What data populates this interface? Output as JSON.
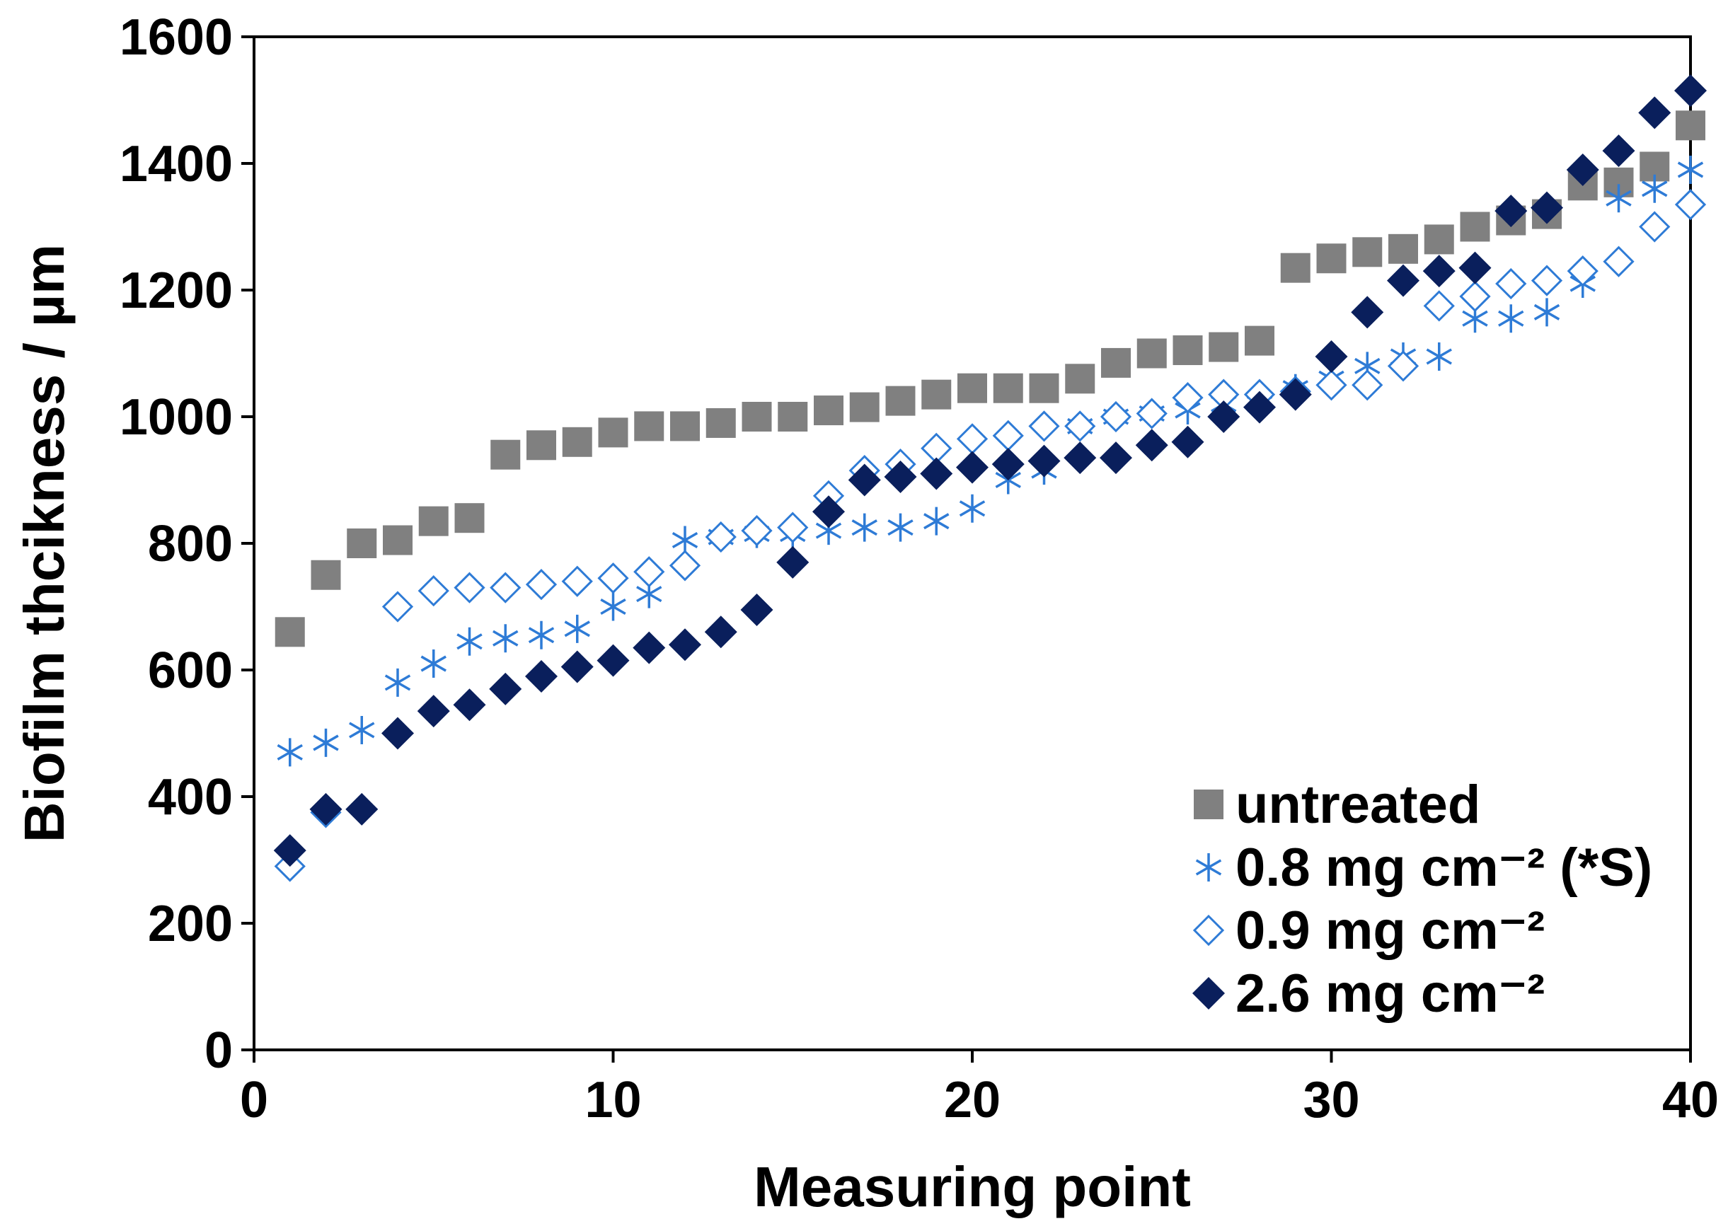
{
  "chart_data": {
    "type": "scatter",
    "title": "",
    "xlabel": "Measuring point",
    "ylabel": "Biofilm thcikness / µm",
    "xlim": [
      0,
      40
    ],
    "ylim": [
      0,
      1600
    ],
    "xticks": [
      0,
      10,
      20,
      30,
      40
    ],
    "yticks": [
      0,
      200,
      400,
      600,
      800,
      1000,
      1200,
      1400,
      1600
    ],
    "grid": false,
    "legend_position": "bottom-right",
    "x": [
      1,
      2,
      3,
      4,
      5,
      6,
      7,
      8,
      9,
      10,
      11,
      12,
      13,
      14,
      15,
      16,
      17,
      18,
      19,
      20,
      21,
      22,
      23,
      24,
      25,
      26,
      27,
      28,
      29,
      30,
      31,
      32,
      33,
      34,
      35,
      36,
      37,
      38,
      39,
      40
    ],
    "series": [
      {
        "name": "untreated",
        "marker": "square",
        "color": "#808080",
        "values": [
          660,
          750,
          800,
          805,
          835,
          840,
          940,
          955,
          960,
          975,
          985,
          985,
          990,
          1000,
          1000,
          1010,
          1015,
          1025,
          1035,
          1045,
          1045,
          1045,
          1060,
          1085,
          1100,
          1105,
          1110,
          1120,
          1235,
          1250,
          1260,
          1265,
          1280,
          1300,
          1310,
          1320,
          1365,
          1370,
          1395,
          1460
        ]
      },
      {
        "name": "0.8 mg cm⁻² (*S)",
        "marker": "asterisk",
        "color": "#2e7bd6",
        "values": [
          470,
          485,
          505,
          580,
          610,
          645,
          650,
          655,
          665,
          700,
          720,
          805,
          810,
          815,
          815,
          820,
          825,
          825,
          835,
          855,
          900,
          915,
          985,
          1000,
          1005,
          1010,
          1020,
          1020,
          1045,
          1060,
          1080,
          1095,
          1095,
          1155,
          1155,
          1165,
          1210,
          1345,
          1360,
          1390
        ]
      },
      {
        "name": "0.9 mg cm⁻²",
        "marker": "diamond-open",
        "color": "#2e7bd6",
        "values": [
          290,
          375,
          null,
          700,
          725,
          730,
          730,
          735,
          740,
          745,
          755,
          765,
          810,
          820,
          825,
          875,
          915,
          925,
          950,
          965,
          970,
          985,
          985,
          1000,
          1005,
          1030,
          1035,
          1035,
          1040,
          1050,
          1050,
          1080,
          1175,
          1190,
          1210,
          1215,
          1230,
          1245,
          1300,
          1335
        ]
      },
      {
        "name": "2.6 mg cm⁻²",
        "marker": "diamond-filled",
        "color": "#0a1f5c",
        "values": [
          315,
          380,
          380,
          500,
          535,
          545,
          570,
          590,
          605,
          615,
          635,
          640,
          660,
          695,
          770,
          850,
          900,
          905,
          910,
          920,
          925,
          930,
          935,
          935,
          955,
          960,
          1000,
          1015,
          1035,
          1095,
          1165,
          1215,
          1230,
          1235,
          1325,
          1330,
          1390,
          1420,
          1480,
          1515
        ]
      }
    ]
  }
}
